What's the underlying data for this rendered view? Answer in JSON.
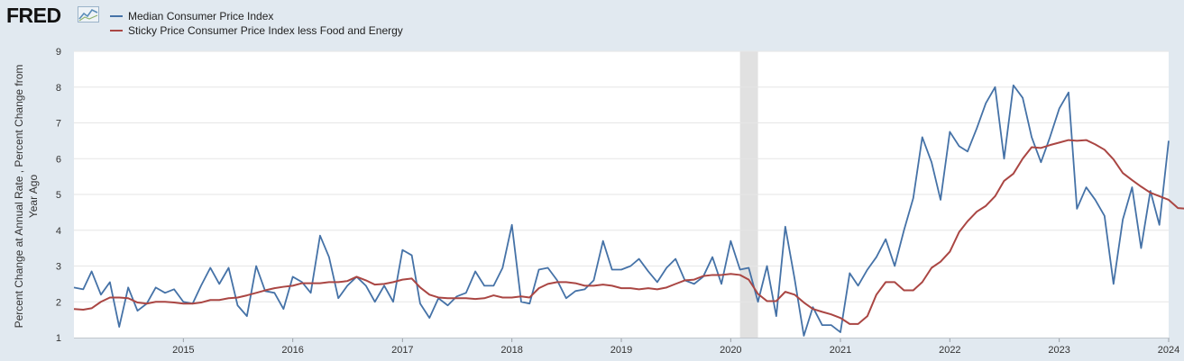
{
  "brand": {
    "logo_text": "FRED",
    "logo_icon": "fred-line-graph-icon"
  },
  "chart_data": {
    "type": "line",
    "title": "",
    "xlabel": "",
    "ylabel": "Percent Change at Annual Rate , Percent Change from Year Ago",
    "ylabel_lines": [
      "Percent Change at Annual Rate , Percent Change from",
      "Year Ago"
    ],
    "ylim": [
      1,
      9
    ],
    "xlim": [
      "2014-01-01",
      "2024-01-01"
    ],
    "grid": true,
    "legend_position": "top-left",
    "x_tick_labels": [
      "2015",
      "2016",
      "2017",
      "2018",
      "2019",
      "2020",
      "2021",
      "2022",
      "2023",
      "2024"
    ],
    "y_tick_labels": [
      "1",
      "2",
      "3",
      "4",
      "5",
      "6",
      "7",
      "8",
      "9"
    ],
    "recession": {
      "start": "2020-02-01",
      "end": "2020-04-01",
      "color": "#e1e1e1"
    },
    "series": [
      {
        "name": "Median Consumer Price Index",
        "color": "#4572a7",
        "start": "2014-01-01",
        "frequency": "monthly",
        "values": [
          2.4,
          2.35,
          2.85,
          2.2,
          2.55,
          1.3,
          2.4,
          1.75,
          1.95,
          2.4,
          2.25,
          2.35,
          2.0,
          1.95,
          2.45,
          2.95,
          2.5,
          2.95,
          1.9,
          1.6,
          3.0,
          2.3,
          2.25,
          1.8,
          2.7,
          2.55,
          2.25,
          3.85,
          3.25,
          2.1,
          2.45,
          2.7,
          2.45,
          2.0,
          2.45,
          2.0,
          3.45,
          3.3,
          1.95,
          1.55,
          2.1,
          1.9,
          2.15,
          2.25,
          2.85,
          2.45,
          2.45,
          2.95,
          4.15,
          2.0,
          1.95,
          2.9,
          2.95,
          2.6,
          2.1,
          2.3,
          2.35,
          2.6,
          3.7,
          2.9,
          2.9,
          3.0,
          3.2,
          2.85,
          2.55,
          2.95,
          3.2,
          2.6,
          2.5,
          2.7,
          3.25,
          2.5,
          3.7,
          2.9,
          2.95,
          2.0,
          3.0,
          1.6,
          4.1,
          2.65,
          1.05,
          1.85,
          1.35,
          1.35,
          1.15,
          2.8,
          2.45,
          2.9,
          3.25,
          3.75,
          3.0,
          4.0,
          4.9,
          6.6,
          5.9,
          4.85,
          6.75,
          6.35,
          6.2,
          6.85,
          7.55,
          8.0,
          6.0,
          8.05,
          7.7,
          6.6,
          5.9,
          6.6,
          7.4,
          7.85,
          4.6,
          5.2,
          4.85,
          4.4,
          2.5,
          4.3,
          5.2,
          3.5,
          5.1,
          4.15,
          6.5
        ]
      },
      {
        "name": "Sticky Price Consumer Price Index less Food and Energy",
        "color": "#aa4643",
        "start": "2014-01-01",
        "frequency": "monthly",
        "values": [
          1.8,
          1.78,
          1.82,
          2.0,
          2.12,
          2.12,
          2.1,
          1.98,
          1.95,
          2.0,
          2.0,
          1.98,
          1.95,
          1.95,
          1.98,
          2.05,
          2.05,
          2.1,
          2.12,
          2.18,
          2.25,
          2.32,
          2.38,
          2.42,
          2.45,
          2.52,
          2.52,
          2.52,
          2.55,
          2.55,
          2.58,
          2.7,
          2.6,
          2.48,
          2.5,
          2.55,
          2.62,
          2.65,
          2.4,
          2.2,
          2.12,
          2.1,
          2.1,
          2.1,
          2.08,
          2.1,
          2.18,
          2.12,
          2.12,
          2.15,
          2.12,
          2.38,
          2.5,
          2.55,
          2.55,
          2.52,
          2.45,
          2.45,
          2.48,
          2.45,
          2.38,
          2.38,
          2.35,
          2.38,
          2.35,
          2.4,
          2.5,
          2.6,
          2.62,
          2.72,
          2.75,
          2.75,
          2.78,
          2.75,
          2.62,
          2.22,
          2.02,
          2.02,
          2.28,
          2.2,
          1.98,
          1.8,
          1.72,
          1.65,
          1.55,
          1.38,
          1.38,
          1.6,
          2.2,
          2.55,
          2.55,
          2.32,
          2.32,
          2.55,
          2.95,
          3.12,
          3.4,
          3.95,
          4.25,
          4.52,
          4.68,
          4.95,
          5.38,
          5.58,
          6.0,
          6.32,
          6.3,
          6.38,
          6.45,
          6.52,
          6.5,
          6.52,
          6.4,
          6.25,
          5.98,
          5.6,
          5.4,
          5.22,
          5.05,
          4.95,
          4.85,
          4.62,
          4.6
        ]
      }
    ]
  }
}
